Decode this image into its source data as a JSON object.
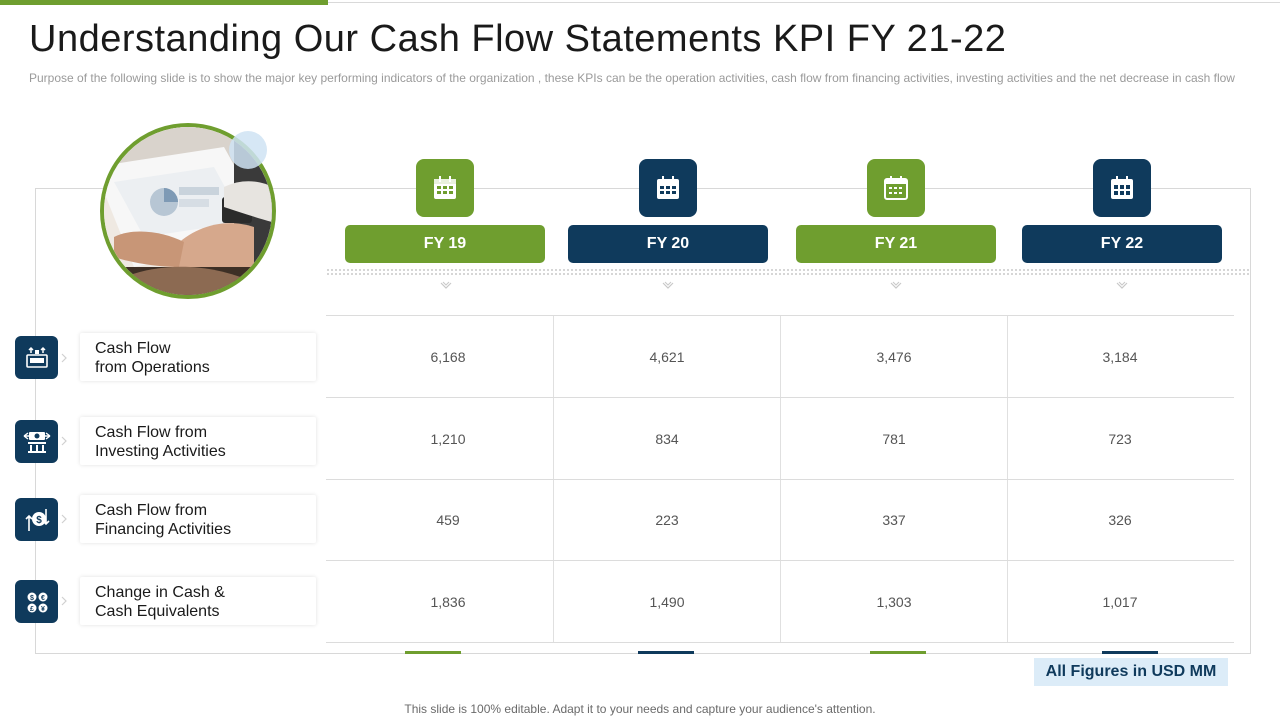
{
  "title": "Understanding Our Cash Flow Statements KPI FY 21-22",
  "subtitle": "Purpose of the following slide is to show the major key performing  indicators of the organization  , these KPIs can be the operation  activities,  cash flow  from  financing  activities,  investing  activities  and the net decrease  in cash flow",
  "columns": [
    {
      "label": "FY 19",
      "icon": "calendar-icon",
      "color": "#6f9e2f"
    },
    {
      "label": "FY 20",
      "icon": "calendar-icon",
      "color": "#0f3a5c"
    },
    {
      "label": "FY 21",
      "icon": "calendar-icon",
      "color": "#6f9e2f"
    },
    {
      "label": "FY 22",
      "icon": "calendar-icon",
      "color": "#0f3a5c"
    }
  ],
  "rows": [
    {
      "line1": "Cash Flow",
      "line2": "from Operations",
      "icon": "cash-register-icon",
      "values": [
        "6,168",
        "4,621",
        "3,476",
        "3,184"
      ]
    },
    {
      "line1": "Cash Flow from",
      "line2": "Investing Activities",
      "icon": "bank-exchange-icon",
      "values": [
        "1,210",
        "834",
        "781",
        "723"
      ]
    },
    {
      "line1": "Cash Flow from",
      "line2": "Financing Activities",
      "icon": "dollar-arrows-icon",
      "values": [
        "459",
        "223",
        "337",
        "326"
      ]
    },
    {
      "line1": "Change in Cash &",
      "line2": "Cash Equivalents",
      "icon": "coins-exchange-icon",
      "values": [
        "1,836",
        "1,490",
        "1,303",
        "1,017"
      ]
    }
  ],
  "note": "All Figures in USD MM",
  "footer": "This slide is 100% editable. Adapt it to your needs and capture your audience's attention.",
  "colors": {
    "green": "#6f9e2f",
    "navy": "#0f3a5c"
  }
}
